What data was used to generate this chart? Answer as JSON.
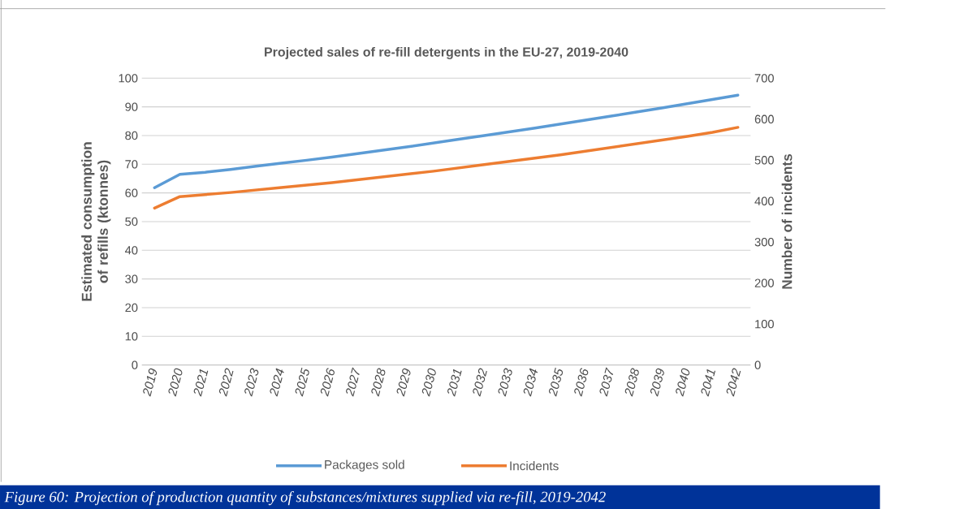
{
  "chart_data": {
    "type": "line",
    "title": "Projected sales of re-fill detergents in the EU-27, 2019-2040",
    "ylabel": "Estimated consumption of refills (ktonnes)",
    "y2label": "Number of incidents",
    "categories": [
      "2019",
      "2020",
      "2021",
      "2022",
      "2023",
      "2024",
      "2025",
      "2026",
      "2027",
      "2028",
      "2029",
      "2030",
      "2031",
      "2032",
      "2033",
      "2034",
      "2035",
      "2036",
      "2037",
      "2038",
      "2039",
      "2040",
      "2041",
      "2042"
    ],
    "series": [
      {
        "name": "Packages sold",
        "color": "#5b9bd5",
        "values": [
          61.8,
          66.5,
          67.2,
          68.2,
          69.3,
          70.4,
          71.4,
          72.5,
          73.7,
          74.9,
          76.1,
          77.4,
          78.7,
          80.0,
          81.3,
          82.6,
          84.0,
          85.4,
          86.8,
          88.2,
          89.6,
          91.1,
          92.6,
          94.1
        ]
      },
      {
        "name": "Incidents",
        "color": "#ed7d31",
        "axis": "y2",
        "values": [
          383,
          411,
          416,
          421,
          427,
          433,
          439,
          445,
          452,
          459,
          466,
          473,
          481,
          489,
          497,
          505,
          513,
          522,
          531,
          540,
          549,
          558,
          568,
          580
        ]
      }
    ],
    "ylim": [
      0,
      100
    ],
    "yticks": [
      0,
      10,
      20,
      30,
      40,
      50,
      60,
      70,
      80,
      90,
      100
    ],
    "y2lim": [
      0,
      700
    ],
    "y2ticks": [
      0,
      100,
      200,
      300,
      400,
      500,
      600,
      700
    ],
    "grid": "y",
    "legend": "bottom",
    "marker": "none",
    "line_style": "solid",
    "annotations": [
      "Figure 60: Projection of production quantity of substances/mixtures supplied via re-fill, 2019-2042"
    ]
  }
}
